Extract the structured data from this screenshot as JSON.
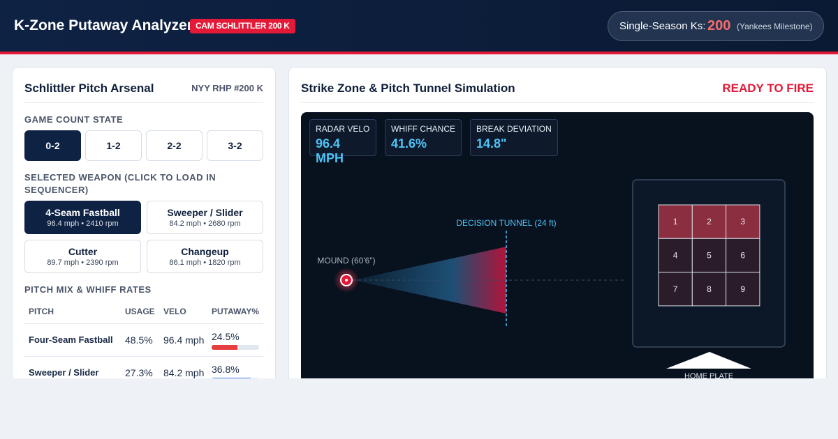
{
  "header": {
    "title": "K-Zone Putaway Analyzer",
    "badge": "CAM SCHLITTLER 200 K",
    "stat_label": "Single-Season Ks:",
    "stat_value": "200",
    "stat_note": "(Yankees Milestone)"
  },
  "arsenal": {
    "title": "Schlittler Pitch Arsenal",
    "tag": "NYY RHP #200 K",
    "count_label": "GAME COUNT STATE",
    "counts": [
      "0-2",
      "1-2",
      "2-2",
      "3-2"
    ],
    "weapon_label": "SELECTED WEAPON (CLICK TO LOAD IN SEQUENCER)",
    "weapons": [
      {
        "name": "4-Seam Fastball",
        "detail": "96.4 mph • 2410 rpm"
      },
      {
        "name": "Sweeper / Slider",
        "detail": "84.2 mph • 2680 rpm"
      },
      {
        "name": "Cutter",
        "detail": "89.7 mph • 2390 rpm"
      },
      {
        "name": "Changeup",
        "detail": "86.1 mph • 1820 rpm"
      }
    ],
    "mix_label": "PITCH MIX & WHIFF RATES",
    "table": {
      "headers": [
        "PITCH",
        "USAGE",
        "VELO",
        "PUTAWAY%"
      ],
      "rows": [
        [
          "Four-Seam Fastball",
          "48.5%",
          "96.4 mph",
          "24.5%"
        ],
        [
          "Sweeper / Slider",
          "27.3%",
          "84.2 mph",
          "36.8%"
        ]
      ]
    }
  },
  "simulation": {
    "title": "Strike Zone & Pitch Tunnel Simulation",
    "status": "READY TO FIRE",
    "metrics": [
      {
        "label": "RADAR VELO",
        "value": "96.4 MPH"
      },
      {
        "label": "WHIFF CHANCE",
        "value": "41.6%"
      },
      {
        "label": "BREAK DEVIATION",
        "value": "14.8\""
      }
    ],
    "tunnel_label": "DECISION TUNNEL (24 ft)",
    "mound_label": "MOUND (60'6\")",
    "zones": [
      "1",
      "2",
      "3",
      "4",
      "5",
      "6",
      "7",
      "8",
      "9"
    ],
    "plate_label": "HOME PLATE"
  }
}
